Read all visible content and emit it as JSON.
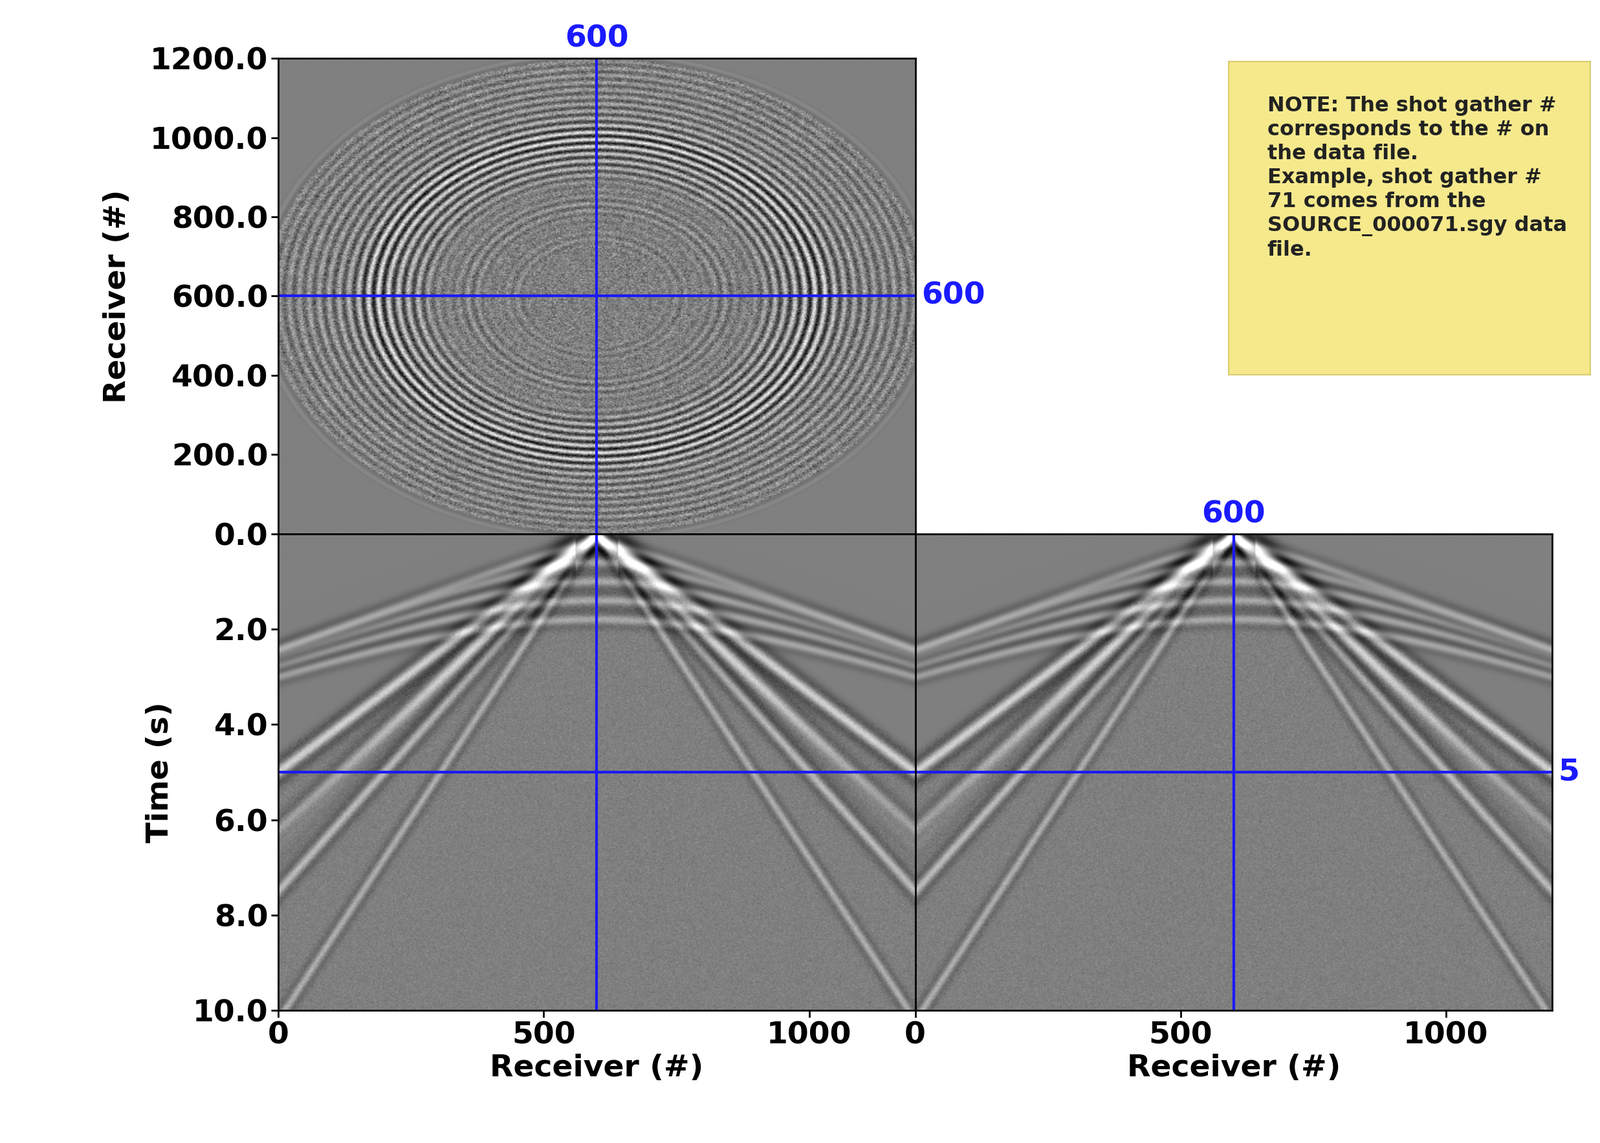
{
  "chart_data": [
    {
      "type": "image",
      "tick_labels": "y",
      "ylabel": "Receiver (#)",
      "xlim": [
        0,
        1200
      ],
      "ylim": [
        0,
        1200
      ],
      "yticks": [
        {
          "value": 200,
          "label": "200.0"
        },
        {
          "value": 400,
          "label": "400.0"
        },
        {
          "value": 600,
          "label": "600.0"
        },
        {
          "value": 800,
          "label": "800.0"
        },
        {
          "value": 1000,
          "label": "1000.0"
        },
        {
          "value": 1200,
          "label": "1200.0"
        }
      ],
      "color": "#1a1aff",
      "annotations": [
        {
          "axis": "x",
          "value": 600,
          "label": "600"
        },
        {
          "axis": "y",
          "value": 600,
          "label": "600"
        }
      ]
    },
    {
      "type": "image",
      "xlabel": "Receiver (#)",
      "ylabel": "Time (s)",
      "xlim": [
        0,
        1200
      ],
      "ylim": [
        10,
        0
      ],
      "xticks": [
        0,
        500,
        1000
      ],
      "yticks": [
        {
          "value": 0,
          "label": "0.0"
        },
        {
          "value": 2,
          "label": "2.0"
        },
        {
          "value": 4,
          "label": "4.0"
        },
        {
          "value": 6,
          "label": "6.0"
        },
        {
          "value": 8,
          "label": "8.0"
        },
        {
          "value": 10,
          "label": "10.0"
        }
      ],
      "color": "#1a1aff",
      "annotations": [
        {
          "axis": "x",
          "value": 600
        },
        {
          "axis": "y",
          "value": 5
        }
      ]
    },
    {
      "type": "image",
      "tick_labels": "x",
      "xlabel": "Receiver (#)",
      "xlim": [
        0,
        1200
      ],
      "ylim": [
        10,
        0
      ],
      "xticks": [
        0,
        500,
        1000
      ],
      "color": "#1a1aff",
      "annotations": [
        {
          "axis": "x",
          "value": 600,
          "label": "600"
        },
        {
          "axis": "y",
          "value": 5,
          "label": "5"
        }
      ]
    }
  ],
  "note": {
    "lines": [
      "NOTE: The shot gather #",
      "corresponds to the # on",
      "the data file.",
      "Example, shot gather #",
      "71 comes from the",
      "SOURCE_000071.sgy data",
      "file."
    ]
  }
}
